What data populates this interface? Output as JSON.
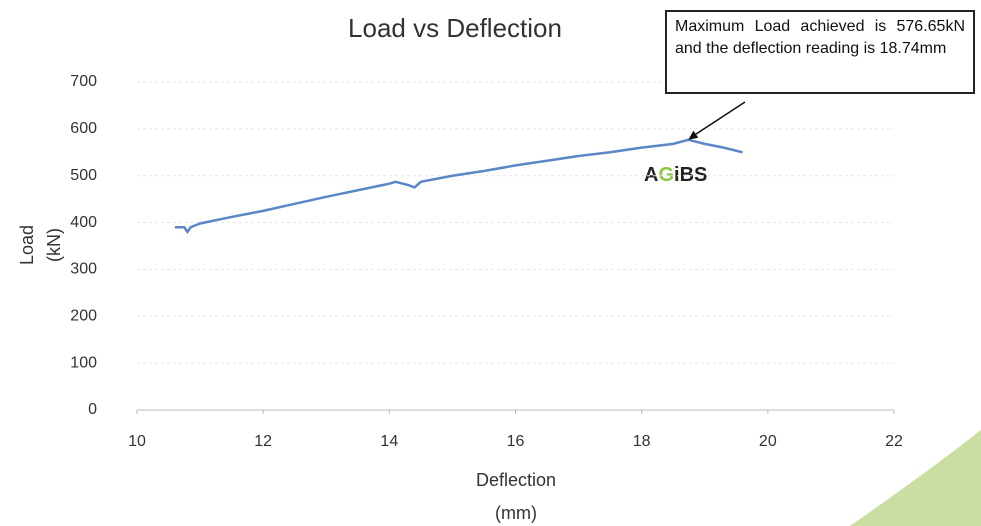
{
  "chart_data": {
    "type": "line",
    "title": "Load vs Deflection",
    "x_label": [
      "Deflection",
      "(mm)"
    ],
    "y_label": [
      "Load",
      "(kN)"
    ],
    "annotation": "Maximum Load achieved is 576.65kN and the deflection reading is 18.74mm",
    "logo": [
      "A",
      "G",
      "iBS"
    ],
    "xlim": [
      10,
      22
    ],
    "xticks": [
      10,
      12,
      14,
      16,
      18,
      20,
      22
    ],
    "ylim": [
      0,
      700
    ],
    "yticks": [
      0,
      100,
      200,
      300,
      400,
      500,
      600,
      700
    ],
    "grid": true,
    "series": [
      {
        "name": "Load",
        "color": "#5b86c8",
        "x": [
          10.6,
          10.75,
          10.8,
          10.85,
          11,
          11.5,
          12,
          12.5,
          13,
          13.5,
          14,
          14.1,
          14.3,
          14.4,
          14.5,
          15,
          15.5,
          16,
          16.5,
          17,
          17.5,
          18,
          18.5,
          18.74,
          19,
          19.3,
          19.6
        ],
        "values": [
          390,
          390,
          380,
          390,
          398,
          412,
          425,
          440,
          455,
          469,
          483,
          487,
          480,
          475,
          487,
          500,
          510,
          522,
          532,
          542,
          550,
          560,
          568,
          576.65,
          568,
          560,
          550
        ]
      }
    ]
  }
}
